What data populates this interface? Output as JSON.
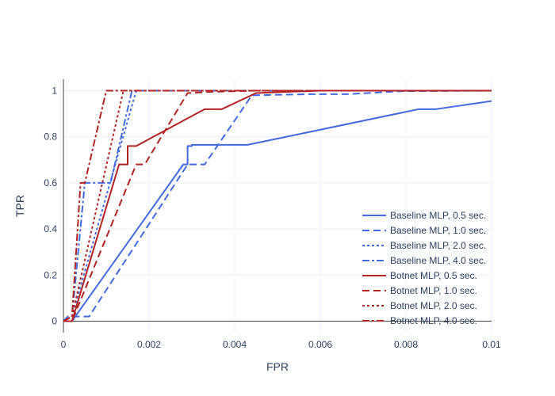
{
  "chart_data": {
    "type": "line",
    "title": "",
    "xlabel": "FPR",
    "ylabel": "TPR",
    "xlim": [
      0,
      0.01
    ],
    "ylim": [
      -0.05,
      1.05
    ],
    "grid": true,
    "legend_position": "bottom-right",
    "x_ticks": [
      {
        "value": 0,
        "label": "0"
      },
      {
        "value": 0.002,
        "label": "0.002"
      },
      {
        "value": 0.004,
        "label": "0.004"
      },
      {
        "value": 0.006,
        "label": "0.006"
      },
      {
        "value": 0.008,
        "label": "0.008"
      },
      {
        "value": 0.01,
        "label": "0.01"
      }
    ],
    "y_ticks": [
      {
        "value": 0,
        "label": "0"
      },
      {
        "value": 0.2,
        "label": "0.2"
      },
      {
        "value": 0.4,
        "label": "0.4"
      },
      {
        "value": 0.6,
        "label": "0.6"
      },
      {
        "value": 0.8,
        "label": "0.8"
      },
      {
        "value": 1,
        "label": "1"
      }
    ],
    "series": [
      {
        "name": "Baseline MLP, 0.5 sec.",
        "color": "#4169e1",
        "dash": "solid",
        "points": [
          [
            0,
            0
          ],
          [
            0.0002,
            0
          ],
          [
            0.0028,
            0.68
          ],
          [
            0.0029,
            0.68
          ],
          [
            0.0029,
            0.76
          ],
          [
            0.003,
            0.76
          ],
          [
            0.003,
            0.765
          ],
          [
            0.0043,
            0.765
          ],
          [
            0.0083,
            0.92
          ],
          [
            0.0087,
            0.92
          ],
          [
            0.01,
            0.955
          ]
        ]
      },
      {
        "name": "Baseline MLP, 1.0 sec.",
        "color": "#4169e1",
        "dash": "dash",
        "points": [
          [
            0,
            0
          ],
          [
            0.0001,
            0.02
          ],
          [
            0.0006,
            0.02
          ],
          [
            0.0029,
            0.68
          ],
          [
            0.0033,
            0.68
          ],
          [
            0.0044,
            0.98
          ],
          [
            0.0058,
            0.985
          ],
          [
            0.0066,
            0.985
          ],
          [
            0.0079,
            0.998
          ],
          [
            0.01,
            1
          ]
        ]
      },
      {
        "name": "Baseline MLP, 2.0 sec.",
        "color": "#4169e1",
        "dash": "dot",
        "points": [
          [
            0,
            0
          ],
          [
            0.0002,
            0.02
          ],
          [
            0.0017,
            1
          ],
          [
            0.01,
            1
          ]
        ]
      },
      {
        "name": "Baseline MLP, 4.0 sec.",
        "color": "#4169e1",
        "dash": "dashdot",
        "points": [
          [
            0,
            0
          ],
          [
            0.0002,
            0.02
          ],
          [
            0.0005,
            0.6
          ],
          [
            0.0011,
            0.6
          ],
          [
            0.0016,
            1
          ],
          [
            0.01,
            1
          ]
        ]
      },
      {
        "name": "Botnet MLP, 0.5 sec.",
        "color": "#b22222",
        "dash": "solid",
        "points": [
          [
            0,
            0
          ],
          [
            0.0002,
            0
          ],
          [
            0.0013,
            0.68
          ],
          [
            0.0015,
            0.68
          ],
          [
            0.0015,
            0.76
          ],
          [
            0.0017,
            0.76
          ],
          [
            0.0033,
            0.92
          ],
          [
            0.0037,
            0.92
          ],
          [
            0.0045,
            0.99
          ],
          [
            0.0052,
            0.995
          ],
          [
            0.006,
            1
          ],
          [
            0.01,
            1
          ]
        ]
      },
      {
        "name": "Botnet MLP, 1.0 sec.",
        "color": "#b22222",
        "dash": "dash",
        "points": [
          [
            0,
            0
          ],
          [
            0.0002,
            0
          ],
          [
            0.0017,
            0.68
          ],
          [
            0.0019,
            0.68
          ],
          [
            0.0029,
            0.99
          ],
          [
            0.0034,
            0.995
          ],
          [
            0.0045,
            1
          ],
          [
            0.01,
            1
          ]
        ]
      },
      {
        "name": "Botnet MLP, 2.0 sec.",
        "color": "#b22222",
        "dash": "dot",
        "points": [
          [
            0,
            0
          ],
          [
            0.0002,
            0.02
          ],
          [
            0.0014,
            1
          ],
          [
            0.01,
            1
          ]
        ]
      },
      {
        "name": "Botnet MLP, 4.0 sec.",
        "color": "#b22222",
        "dash": "dashdot",
        "points": [
          [
            0,
            0
          ],
          [
            0.0002,
            0.02
          ],
          [
            0.0004,
            0.6
          ],
          [
            0.0005,
            0.6
          ],
          [
            0.001,
            1
          ],
          [
            0.01,
            1
          ]
        ]
      }
    ]
  }
}
